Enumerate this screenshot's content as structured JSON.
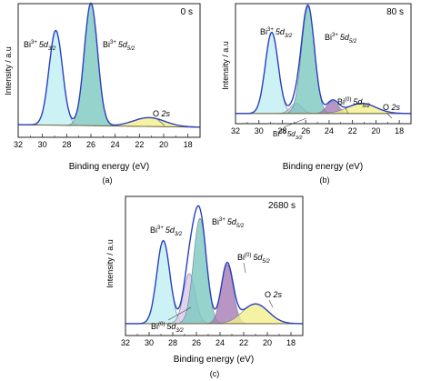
{
  "figure": {
    "panels": [
      {
        "id": "a",
        "caption": "(a)",
        "time_label": "0 s"
      },
      {
        "id": "b",
        "caption": "(b)",
        "time_label": "80 s"
      },
      {
        "id": "c",
        "caption": "(c)",
        "time_label": "2680 s"
      }
    ]
  },
  "chart_data": [
    {
      "type": "line",
      "panel": "a",
      "title": "0 s",
      "xlabel": "Binding energy (eV)",
      "ylabel": "Intensity / a.u",
      "xlim": [
        32,
        17
      ],
      "x_reversed": true,
      "xticks": [
        32,
        30,
        28,
        26,
        24,
        22,
        20,
        18
      ],
      "ylim": [
        0,
        1.0
      ],
      "grid": false,
      "yticks_labeled": false,
      "annotations": [
        {
          "text": "Bi3+ 5d3/2",
          "x": 29.0,
          "y": 0.76
        },
        {
          "text": "Bi3+ 5d5/2",
          "x": 26.0,
          "y": 0.76
        },
        {
          "text": "O 2s",
          "x": 21.0,
          "y": 0.18
        }
      ],
      "background": {
        "start": 0.1,
        "end": 0.08
      },
      "components": [
        {
          "name": "Bi3+ 5d3/2",
          "center": 28.9,
          "height": 0.75,
          "sigma": 0.55,
          "color": "#bfeff4"
        },
        {
          "name": "Bi3+ 5d5/2",
          "center": 26.0,
          "height": 0.97,
          "sigma": 0.55,
          "color": "#7cc8c0"
        },
        {
          "name": "O 2s",
          "center": 21.2,
          "height": 0.07,
          "sigma": 1.3,
          "color": "#f3ef8c"
        }
      ]
    },
    {
      "type": "line",
      "panel": "b",
      "title": "80 s",
      "xlabel": "Binding energy (eV)",
      "ylabel": "Intensity / a.u",
      "xlim": [
        32,
        17
      ],
      "x_reversed": true,
      "xticks": [
        32,
        30,
        28,
        26,
        24,
        22,
        20,
        18
      ],
      "ylim": [
        0,
        1.0
      ],
      "grid": false,
      "yticks_labeled": false,
      "annotations": [
        {
          "text": "Bi3+ 5d3/2",
          "x": 28.9,
          "y": 0.76
        },
        {
          "text": "Bi3+ 5d5/2",
          "x": 25.8,
          "y": 0.76
        },
        {
          "text": "Bi(0) 5d5/2",
          "x": 23.7,
          "y": 0.26
        },
        {
          "text": "O 2s",
          "x": 21.0,
          "y": 0.18
        },
        {
          "text": "Bi(0) 5d3/2",
          "x": 27.0,
          "y": 0.03
        }
      ],
      "background": {
        "start": 0.09,
        "end": 0.09
      },
      "components": [
        {
          "name": "Bi3+ 5d3/2",
          "center": 28.9,
          "height": 0.72,
          "sigma": 0.55,
          "color": "#bfeff4"
        },
        {
          "name": "Bi(0) 5d3/2",
          "center": 26.8,
          "height": 0.09,
          "sigma": 0.5,
          "color": "#cfc3e6"
        },
        {
          "name": "Bi3+ 5d5/2",
          "center": 25.8,
          "height": 0.95,
          "sigma": 0.55,
          "color": "#7cc8c0"
        },
        {
          "name": "Bi(0) 5d5/2",
          "center": 23.7,
          "height": 0.11,
          "sigma": 0.5,
          "color": "#a77ab8"
        },
        {
          "name": "O 2s",
          "center": 21.2,
          "height": 0.09,
          "sigma": 1.2,
          "color": "#f3ef8c"
        }
      ]
    },
    {
      "type": "line",
      "panel": "c",
      "title": "2680 s",
      "xlabel": "Binding energy (eV)",
      "ylabel": "Intensity / a.u",
      "xlim": [
        32,
        17
      ],
      "x_reversed": true,
      "xticks": [
        32,
        30,
        28,
        26,
        24,
        22,
        20,
        18
      ],
      "ylim": [
        0,
        1.0
      ],
      "grid": false,
      "yticks_labeled": false,
      "annotations": [
        {
          "text": "Bi3+ 5d3/2",
          "x": 28.9,
          "y": 0.72
        },
        {
          "text": "Bi3+ 5d5/2",
          "x": 25.6,
          "y": 0.76
        },
        {
          "text": "Bi(0) 5d5/2",
          "x": 23.4,
          "y": 0.55
        },
        {
          "text": "O 2s",
          "x": 21.0,
          "y": 0.3
        },
        {
          "text": "Bi(0) 5d3/2",
          "x": 27.5,
          "y": 0.02
        }
      ],
      "background": {
        "start": 0.09,
        "end": 0.09
      },
      "components": [
        {
          "name": "Bi3+ 5d3/2",
          "center": 28.8,
          "height": 0.63,
          "sigma": 0.55,
          "color": "#bfeff4"
        },
        {
          "name": "Bi(0) 5d3/2",
          "center": 26.6,
          "height": 0.38,
          "sigma": 0.5,
          "color": "#d9c8ec"
        },
        {
          "name": "Bi3+ 5d5/2",
          "center": 25.7,
          "height": 0.8,
          "sigma": 0.55,
          "color": "#7cc8c0"
        },
        {
          "name": "Bi(0) 5d5/2",
          "center": 23.4,
          "height": 0.45,
          "sigma": 0.5,
          "color": "#a77ab8"
        },
        {
          "name": "O 2s",
          "center": 21.0,
          "height": 0.15,
          "sigma": 1.1,
          "color": "#f3ef8c"
        }
      ]
    }
  ]
}
